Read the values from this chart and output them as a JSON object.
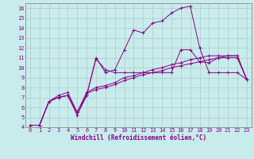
{
  "background_color": "#c8ecec",
  "grid_color": "#b0c8c8",
  "line_color": "#880088",
  "xlim": [
    -0.5,
    23.5
  ],
  "ylim": [
    4,
    16.5
  ],
  "xticks": [
    0,
    1,
    2,
    3,
    4,
    5,
    6,
    7,
    8,
    9,
    10,
    11,
    12,
    13,
    14,
    15,
    16,
    17,
    18,
    19,
    20,
    21,
    22,
    23
  ],
  "yticks": [
    4,
    5,
    6,
    7,
    8,
    9,
    10,
    11,
    12,
    13,
    14,
    15,
    16
  ],
  "xlabel": "Windchill (Refroidissement éolien,°C)",
  "tick_fontsize": 5.0,
  "xlabel_fontsize": 5.5,
  "series": [
    [
      4.2,
      4.2,
      6.6,
      7.0,
      7.2,
      5.2,
      7.2,
      10.9,
      9.8,
      9.5,
      9.5,
      9.5,
      9.5,
      9.5,
      9.5,
      9.5,
      11.8,
      11.8,
      10.6,
      10.5,
      11.0,
      11.2,
      11.2,
      8.8
    ],
    [
      4.2,
      4.2,
      6.6,
      7.0,
      7.2,
      5.5,
      7.5,
      8.0,
      8.2,
      8.5,
      9.0,
      9.2,
      9.5,
      9.8,
      10.0,
      10.3,
      10.5,
      10.8,
      11.0,
      11.2,
      11.2,
      11.2,
      11.2,
      8.8
    ],
    [
      4.2,
      4.2,
      6.6,
      7.0,
      7.2,
      5.5,
      7.4,
      7.8,
      8.0,
      8.3,
      8.7,
      9.0,
      9.3,
      9.5,
      9.7,
      10.0,
      10.2,
      10.4,
      10.6,
      10.8,
      11.0,
      11.0,
      11.0,
      8.8
    ],
    [
      4.2,
      4.2,
      6.6,
      7.2,
      7.5,
      5.5,
      7.2,
      11.0,
      9.5,
      9.8,
      11.8,
      13.8,
      13.5,
      14.5,
      14.7,
      15.5,
      16.0,
      16.2,
      12.0,
      9.5,
      9.5,
      9.5,
      9.5,
      8.8
    ]
  ]
}
